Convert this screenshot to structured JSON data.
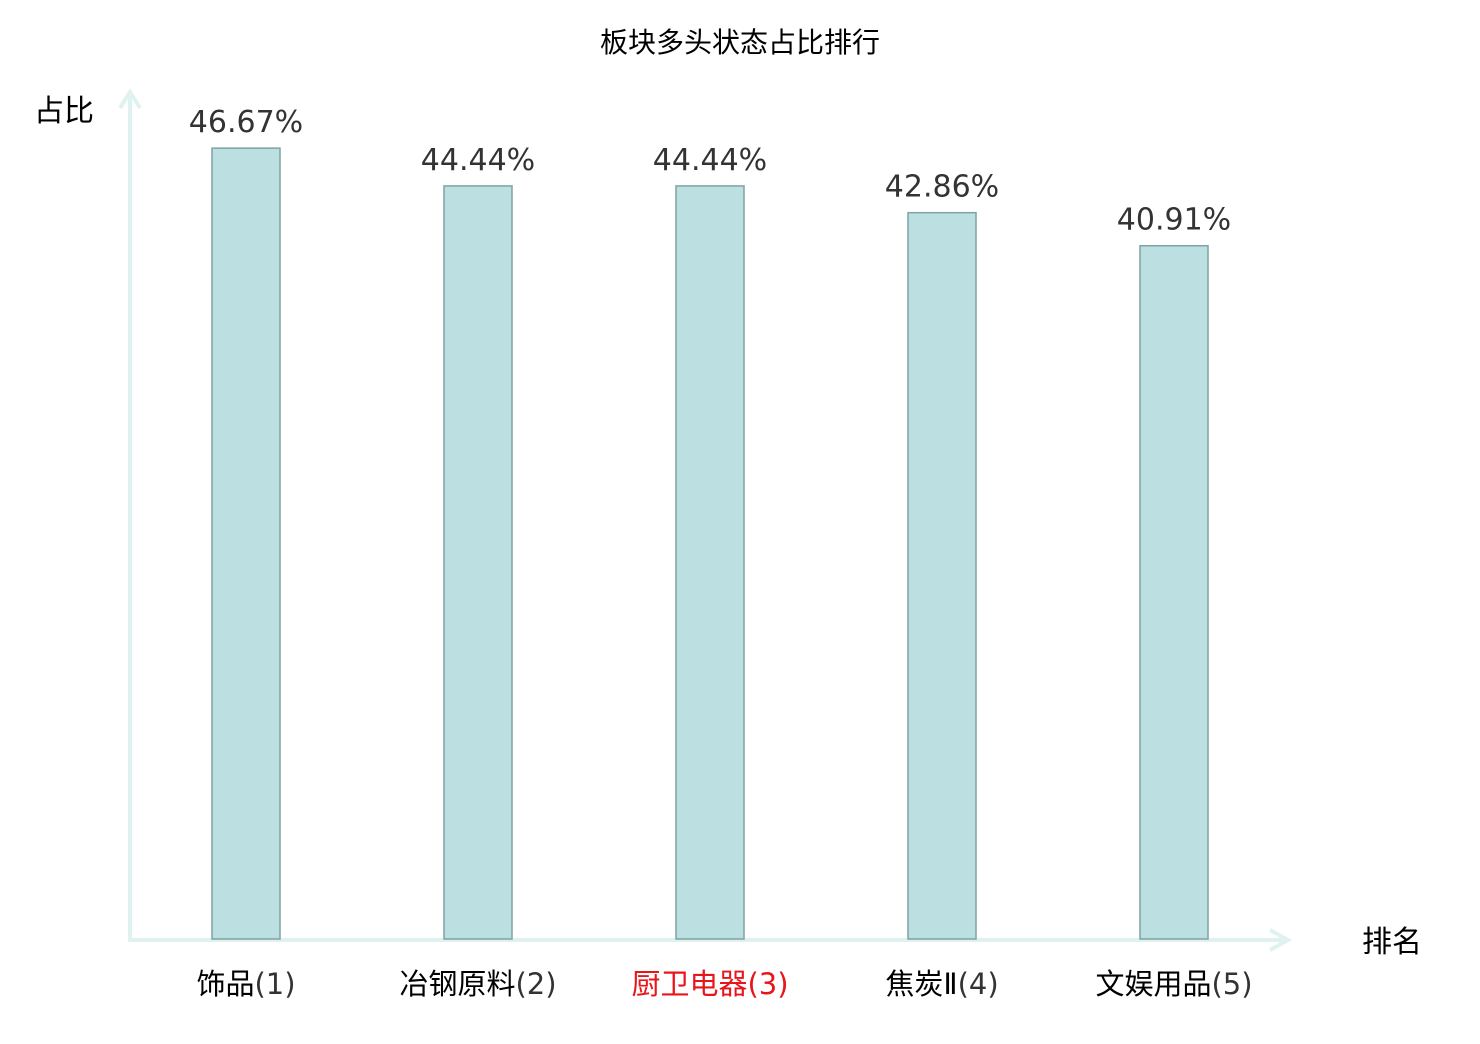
{
  "chart_data": {
    "type": "bar",
    "title": "板块多头状态占比排行",
    "ylabel": "占比",
    "xlabel": "排名",
    "categories": [
      {
        "name": "饰品",
        "rank": "(1)"
      },
      {
        "name": "冶钢原料",
        "rank": "(2)"
      },
      {
        "name": "厨卫电器",
        "rank": "(3)"
      },
      {
        "name": "焦炭Ⅱ",
        "rank": "(4)"
      },
      {
        "name": "文娱用品",
        "rank": "(5)"
      }
    ],
    "values": [
      46.67,
      44.44,
      44.44,
      42.86,
      40.91
    ],
    "value_labels": [
      "46.67%",
      "44.44%",
      "44.44%",
      "42.86%",
      "40.91%"
    ],
    "highlight_index": 2,
    "ylim": [
      0,
      50
    ],
    "grid": false,
    "legend": "none",
    "colors": {
      "bar_fill": "#bce0e2",
      "bar_stroke": "#7fa2a4",
      "axis": "#dff2ef",
      "highlight_label": "#e8161b",
      "normal_label": "#000000",
      "value_label": "#333333"
    }
  }
}
